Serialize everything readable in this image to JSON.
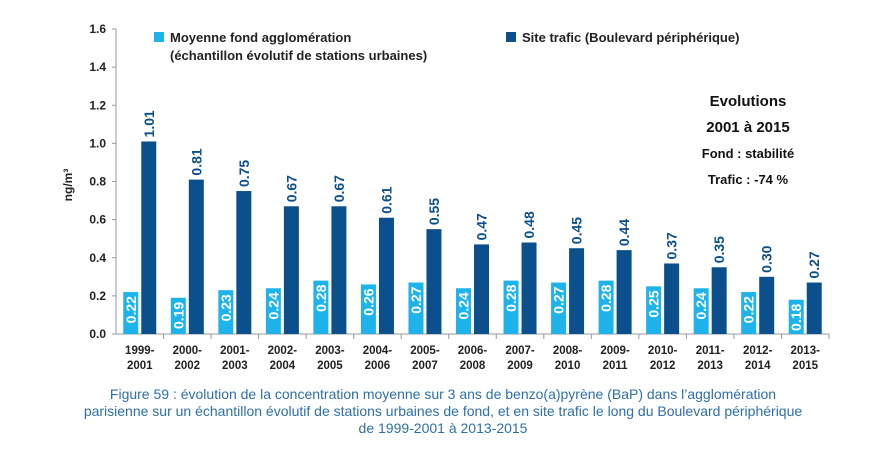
{
  "chart_data": {
    "type": "bar",
    "ylabel": "ng/m³",
    "ylim": [
      0,
      1.6
    ],
    "yticks": [
      "0.0",
      "0.2",
      "0.4",
      "0.6",
      "0.8",
      "1.0",
      "1.2",
      "1.4",
      "1.6"
    ],
    "legend_position": "top",
    "categories": [
      [
        "1999-",
        "2001"
      ],
      [
        "2000-",
        "2002"
      ],
      [
        "2001-",
        "2003"
      ],
      [
        "2002-",
        "2004"
      ],
      [
        "2003-",
        "2005"
      ],
      [
        "2004-",
        "2006"
      ],
      [
        "2005-",
        "2007"
      ],
      [
        "2006-",
        "2008"
      ],
      [
        "2007-",
        "2009"
      ],
      [
        "2008-",
        "2010"
      ],
      [
        "2009-",
        "2011"
      ],
      [
        "2010-",
        "2012"
      ],
      [
        "2011-",
        "2013"
      ],
      [
        "2012-",
        "2014"
      ],
      [
        "2013-",
        "2015"
      ]
    ],
    "series": [
      {
        "name_lines": [
          "Moyenne fond agglomération",
          "(échantillon évolutif de stations urbaines)"
        ],
        "color": "#1fb3ec",
        "label_color": "#1fb3ec",
        "values": [
          0.22,
          0.19,
          0.23,
          0.24,
          0.28,
          0.26,
          0.27,
          0.24,
          0.28,
          0.27,
          0.28,
          0.25,
          0.24,
          0.22,
          0.18
        ]
      },
      {
        "name_lines": [
          "Site trafic (Boulevard périphérique)"
        ],
        "color": "#0b4f8c",
        "label_color": "#0b4f8c",
        "values": [
          1.01,
          0.81,
          0.75,
          0.67,
          0.67,
          0.61,
          0.55,
          0.47,
          0.48,
          0.45,
          0.44,
          0.37,
          0.35,
          0.3,
          0.27
        ]
      }
    ],
    "annotation": {
      "line1": "Evolutions",
      "line2": "2001 à 2015",
      "line3": "Fond : stabilité",
      "line4": "Trafic : -74 %"
    }
  },
  "caption": {
    "line1": "Figure 59 : évolution de la concentration moyenne sur 3 ans de benzo(a)pyrène (BaP) dans l’agglomération",
    "line2": "parisienne sur un échantillon évolutif de stations urbaines de fond, et en site trafic le long du Boulevard périphérique",
    "line3": "de 1999-2001 à 2013-2015"
  }
}
